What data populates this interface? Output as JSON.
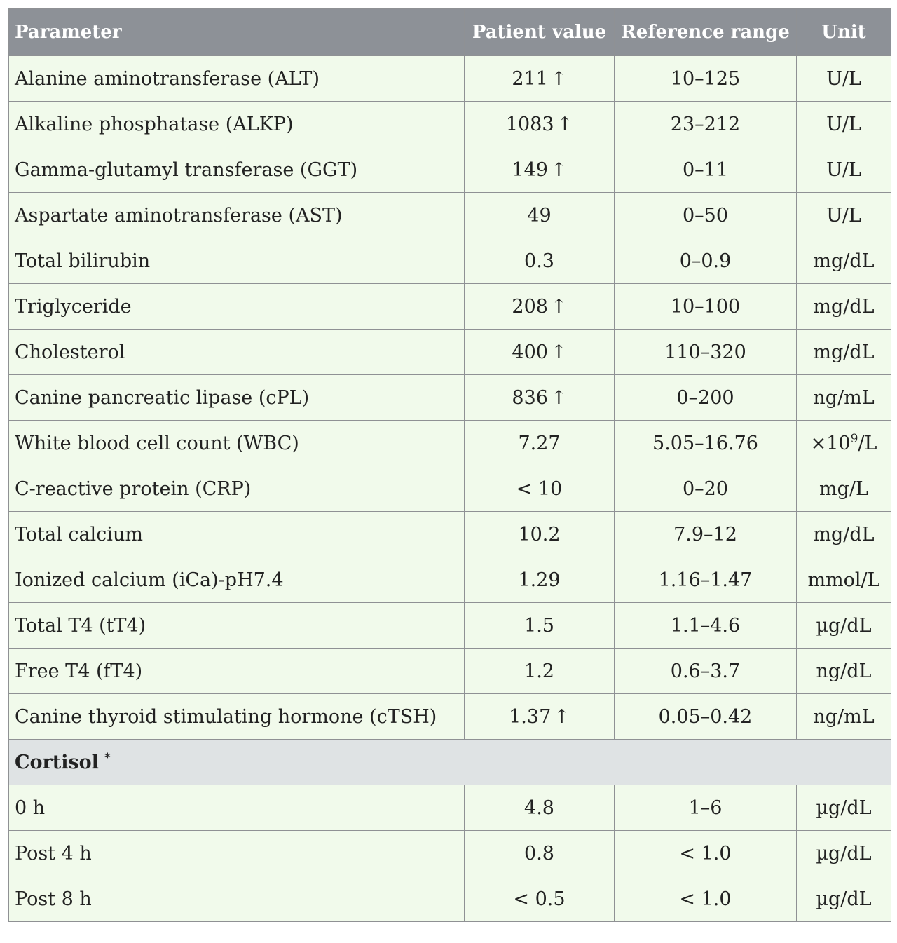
{
  "headers": {
    "parameter": "Parameter",
    "patient_value": "Patient value",
    "reference_range": "Reference range",
    "unit": "Unit"
  },
  "rows": [
    {
      "parameter": "Alanine aminotransferase (ALT)",
      "value": "211",
      "flag": "↑",
      "range": "10–125",
      "unit": "U/L"
    },
    {
      "parameter": "Alkaline phosphatase (ALKP)",
      "value": "1083",
      "flag": "↑",
      "range": "23–212",
      "unit": "U/L"
    },
    {
      "parameter": "Gamma-glutamyl transferase (GGT)",
      "value": "149",
      "flag": "↑",
      "range": "0–11",
      "unit": "U/L"
    },
    {
      "parameter": "Aspartate aminotransferase (AST)",
      "value": "49",
      "flag": "",
      "range": "0–50",
      "unit": "U/L"
    },
    {
      "parameter": "Total bilirubin",
      "value": "0.3",
      "flag": "",
      "range": "0–0.9",
      "unit": "mg/dL"
    },
    {
      "parameter": "Triglyceride",
      "value": "208",
      "flag": "↑",
      "range": "10–100",
      "unit": "mg/dL"
    },
    {
      "parameter": "Cholesterol",
      "value": "400",
      "flag": "↑",
      "range": "110–320",
      "unit": "mg/dL"
    },
    {
      "parameter": "Canine pancreatic lipase (cPL)",
      "value": "836",
      "flag": "↑",
      "range": "0–200",
      "unit": "ng/mL"
    },
    {
      "parameter": "White blood cell count (WBC)",
      "value": "7.27",
      "flag": "",
      "range": "5.05–16.76",
      "unit": "×10",
      "unit_sup": "9",
      "unit_after": "/L"
    },
    {
      "parameter": "C-reactive protein (CRP)",
      "value": "< 10",
      "flag": "",
      "range": "0–20",
      "unit": "mg/L"
    },
    {
      "parameter": "Total calcium",
      "value": "10.2",
      "flag": "",
      "range": "7.9–12",
      "unit": "mg/dL"
    },
    {
      "parameter": "Ionized calcium (iCa)-pH7.4",
      "value": "1.29",
      "flag": "",
      "range": "1.16–1.47",
      "unit": "mmol/L"
    },
    {
      "parameter": "Total T4 (tT4)",
      "value": "1.5",
      "flag": "",
      "range": "1.1–4.6",
      "unit": "µg/dL"
    },
    {
      "parameter": "Free T4 (fT4)",
      "value": "1.2",
      "flag": "",
      "range": "0.6–3.7",
      "unit": "ng/dL"
    },
    {
      "parameter": "Canine thyroid stimulating hormone (cTSH)",
      "value": "1.37",
      "flag": "↑",
      "range": "0.05–0.42",
      "unit": "ng/mL"
    }
  ],
  "section": {
    "label": "Cortisol",
    "marker": "*"
  },
  "section_rows": [
    {
      "parameter": "0 h",
      "value": "4.8",
      "flag": "",
      "range": "1–6",
      "unit": "µg/dL"
    },
    {
      "parameter": "Post 4 h",
      "value": "0.8",
      "flag": "",
      "range": "< 1.0",
      "unit": "µg/dL"
    },
    {
      "parameter": "Post 8 h",
      "value": "< 0.5",
      "flag": "",
      "range": "< 1.0",
      "unit": "µg/dL"
    }
  ],
  "colors": {
    "header_bg": "#8d9197",
    "header_text": "#ffffff",
    "row_bg": "#f1faeb",
    "section_bg": "#dfe3e4",
    "border": "#8f9194"
  }
}
